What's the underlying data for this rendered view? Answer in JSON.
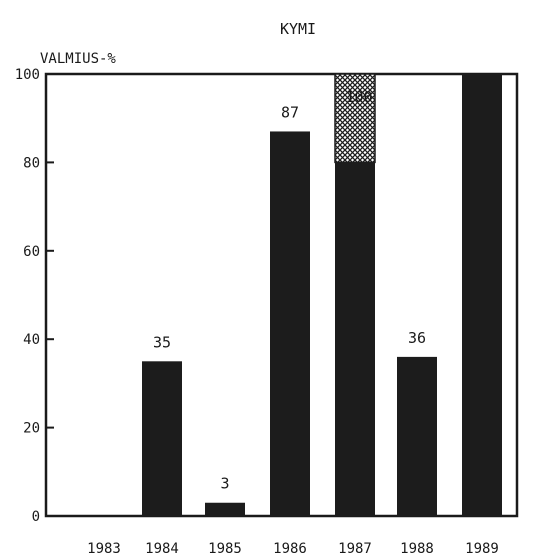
{
  "chart_data": {
    "type": "bar",
    "title": "KYMI",
    "ylabel": "VALMIUS-%",
    "xlabel": "",
    "ylim": [
      0,
      100
    ],
    "yticks": [
      0,
      20,
      40,
      60,
      80,
      100
    ],
    "grid": false,
    "legend": "none",
    "categories": [
      "1983",
      "1984",
      "1985",
      "1986",
      "1987",
      "1988",
      "1989"
    ],
    "values": [
      0,
      35,
      3,
      87,
      100,
      36,
      100
    ],
    "labels": [
      "",
      "35",
      "3",
      "87",
      "100",
      "36",
      ""
    ],
    "hatched_from": [
      null,
      null,
      null,
      null,
      80,
      null,
      null
    ],
    "colors": {
      "bar": "#1c1c1c",
      "hatch": "#1c1c1c",
      "axis": "#1a1a1a"
    }
  }
}
